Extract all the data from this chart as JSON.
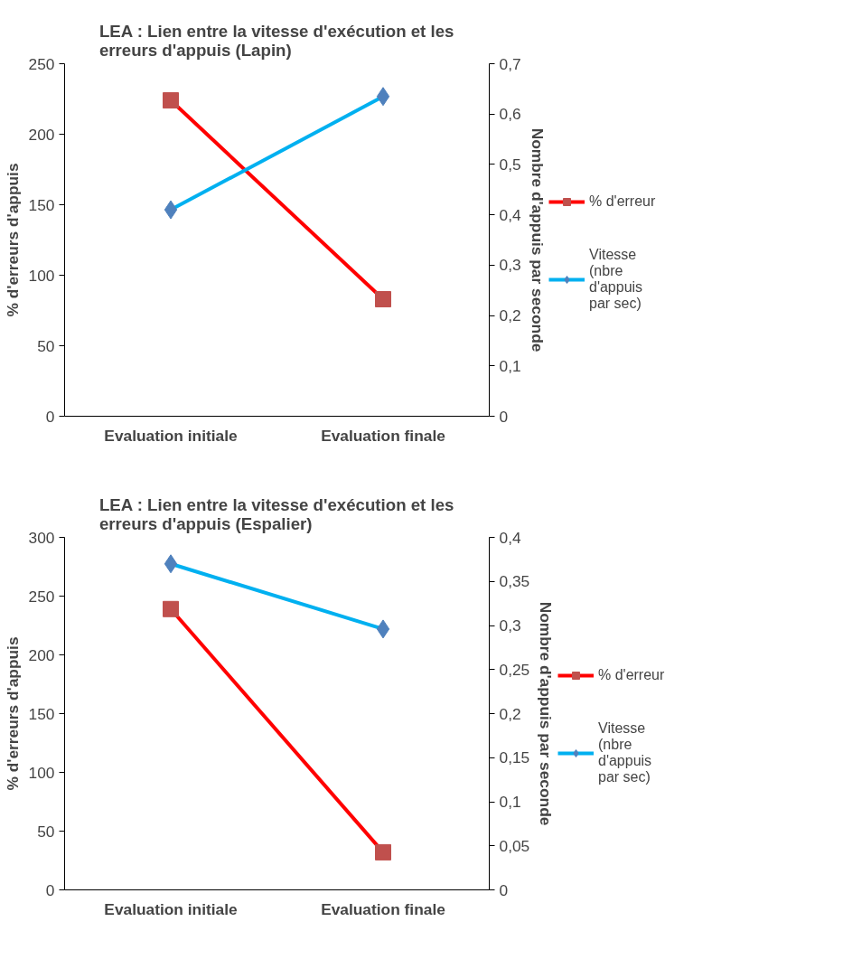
{
  "chart_data": [
    {
      "type": "line",
      "title": "LEA : Lien entre la vitesse d'exécution et les erreurs d'appuis (Lapin)",
      "ylabel": "% d'erreurs d'appuis",
      "y2label": "Nombre d'appuis par seconde",
      "categories": [
        "Evaluation initiale",
        "Evaluation finale"
      ],
      "series": [
        {
          "name": "% d'erreur",
          "color": "#ff0000",
          "marker": "square",
          "values": [
            224,
            83
          ]
        },
        {
          "name": "Vitesse (nbre d'appuis par sec)",
          "color": "#00b0f0",
          "marker": "diamond",
          "axis": "y2",
          "values": [
            0.41,
            0.635
          ]
        }
      ],
      "ylim": [
        0,
        250
      ],
      "yticks": [
        0,
        50,
        100,
        150,
        200,
        250
      ],
      "y2lim": [
        0,
        0.7
      ],
      "y2ticks": [
        {
          "value": 0,
          "label": "0"
        },
        {
          "value": 0.1,
          "label": "0,1"
        },
        {
          "value": 0.2,
          "label": "0,2"
        },
        {
          "value": 0.3,
          "label": "0,3"
        },
        {
          "value": 0.4,
          "label": "0,4"
        },
        {
          "value": 0.5,
          "label": "0,5"
        },
        {
          "value": 0.6,
          "label": "0,6"
        },
        {
          "value": 0.7,
          "label": "0,7"
        }
      ],
      "grid": false,
      "legend": "right"
    },
    {
      "type": "line",
      "title": "LEA : Lien entre la vitesse d'exécution et les erreurs d'appuis (Espalier)",
      "ylabel": "% d'erreurs d'appuis",
      "y2label": "Nombre d'appuis par seconde",
      "categories": [
        "Evaluation initiale",
        "Evaluation finale"
      ],
      "series": [
        {
          "name": "% d'erreur",
          "color": "#ff0000",
          "marker": "square",
          "values": [
            239,
            32
          ]
        },
        {
          "name": "Vitesse (nbre d'appuis par sec)",
          "color": "#00b0f0",
          "marker": "diamond",
          "axis": "y2",
          "values": [
            0.37,
            0.296
          ]
        }
      ],
      "ylim": [
        0,
        300
      ],
      "yticks": [
        0,
        50,
        100,
        150,
        200,
        250,
        300
      ],
      "y2lim": [
        0,
        0.4
      ],
      "y2ticks": [
        {
          "value": 0,
          "label": "0"
        },
        {
          "value": 0.05,
          "label": "0,05"
        },
        {
          "value": 0.1,
          "label": "0,1"
        },
        {
          "value": 0.15,
          "label": "0,15"
        },
        {
          "value": 0.2,
          "label": "0,2"
        },
        {
          "value": 0.25,
          "label": "0,25"
        },
        {
          "value": 0.3,
          "label": "0,3"
        },
        {
          "value": 0.35,
          "label": "0,35"
        },
        {
          "value": 0.4,
          "label": "0,4"
        }
      ],
      "grid": false,
      "legend": "right"
    }
  ]
}
